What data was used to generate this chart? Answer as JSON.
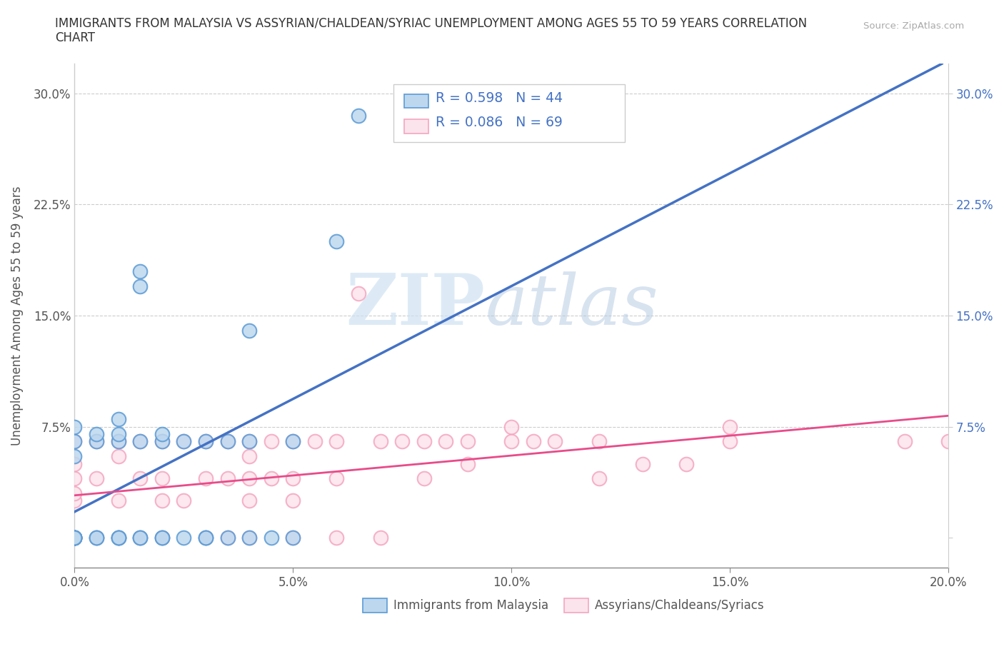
{
  "title": "IMMIGRANTS FROM MALAYSIA VS ASSYRIAN/CHALDEAN/SYRIAC UNEMPLOYMENT AMONG AGES 55 TO 59 YEARS CORRELATION\nCHART",
  "source_text": "Source: ZipAtlas.com",
  "ylabel": "Unemployment Among Ages 55 to 59 years",
  "xlim": [
    0.0,
    0.2
  ],
  "ylim": [
    -0.02,
    0.32
  ],
  "ylim_plot": [
    0.0,
    0.32
  ],
  "x_ticks": [
    0.0,
    0.05,
    0.1,
    0.15,
    0.2
  ],
  "x_tick_labels": [
    "0.0%",
    "5.0%",
    "10.0%",
    "15.0%",
    "20.0%"
  ],
  "y_ticks": [
    0.0,
    0.075,
    0.15,
    0.225,
    0.3
  ],
  "y_tick_labels": [
    "",
    "7.5%",
    "15.0%",
    "22.5%",
    "30.0%"
  ],
  "series1_R": 0.598,
  "series1_N": 44,
  "series2_R": 0.086,
  "series2_N": 69,
  "series1_color_edge": "#5b9bd5",
  "series1_color_fill": "#bdd7ee",
  "series2_color_edge": "#f4a6c0",
  "series2_color_fill": "#fce4ec",
  "line1_color": "#4472c4",
  "line2_color": "#e84b8a",
  "legend1_label": "Immigrants from Malaysia",
  "legend2_label": "Assyrians/Chaldeans/Syriacs",
  "watermark_zip": "ZIP",
  "watermark_atlas": "atlas",
  "series1_x": [
    0.0,
    0.0,
    0.0,
    0.0,
    0.0,
    0.0,
    0.0,
    0.0,
    0.0,
    0.0,
    0.005,
    0.005,
    0.005,
    0.005,
    0.01,
    0.01,
    0.01,
    0.01,
    0.01,
    0.01,
    0.015,
    0.015,
    0.015,
    0.015,
    0.015,
    0.02,
    0.02,
    0.02,
    0.02,
    0.025,
    0.025,
    0.03,
    0.03,
    0.03,
    0.035,
    0.035,
    0.04,
    0.04,
    0.04,
    0.045,
    0.05,
    0.05,
    0.06,
    0.065
  ],
  "series1_y": [
    0.0,
    0.0,
    0.0,
    0.0,
    0.0,
    0.0,
    0.0,
    0.055,
    0.065,
    0.075,
    0.0,
    0.0,
    0.065,
    0.07,
    0.0,
    0.0,
    0.0,
    0.065,
    0.07,
    0.08,
    0.0,
    0.0,
    0.065,
    0.17,
    0.18,
    0.0,
    0.0,
    0.065,
    0.07,
    0.0,
    0.065,
    0.0,
    0.0,
    0.065,
    0.0,
    0.065,
    0.0,
    0.065,
    0.14,
    0.0,
    0.0,
    0.065,
    0.2,
    0.285
  ],
  "series2_x": [
    0.0,
    0.0,
    0.0,
    0.0,
    0.0,
    0.0,
    0.0,
    0.0,
    0.0,
    0.0,
    0.0,
    0.005,
    0.005,
    0.005,
    0.01,
    0.01,
    0.01,
    0.01,
    0.015,
    0.015,
    0.015,
    0.02,
    0.02,
    0.02,
    0.02,
    0.025,
    0.025,
    0.03,
    0.03,
    0.03,
    0.035,
    0.035,
    0.035,
    0.04,
    0.04,
    0.04,
    0.04,
    0.04,
    0.045,
    0.045,
    0.05,
    0.05,
    0.05,
    0.05,
    0.055,
    0.06,
    0.06,
    0.06,
    0.065,
    0.07,
    0.07,
    0.075,
    0.08,
    0.08,
    0.085,
    0.09,
    0.09,
    0.1,
    0.1,
    0.105,
    0.11,
    0.12,
    0.12,
    0.13,
    0.14,
    0.15,
    0.15,
    0.19,
    0.2
  ],
  "series2_y": [
    0.0,
    0.0,
    0.0,
    0.0,
    0.0,
    0.0,
    0.025,
    0.03,
    0.04,
    0.05,
    0.065,
    0.0,
    0.04,
    0.065,
    0.0,
    0.025,
    0.055,
    0.065,
    0.0,
    0.04,
    0.065,
    0.0,
    0.025,
    0.04,
    0.065,
    0.025,
    0.065,
    0.0,
    0.04,
    0.065,
    0.0,
    0.04,
    0.065,
    0.0,
    0.025,
    0.04,
    0.055,
    0.065,
    0.04,
    0.065,
    0.0,
    0.025,
    0.04,
    0.065,
    0.065,
    0.0,
    0.04,
    0.065,
    0.165,
    0.0,
    0.065,
    0.065,
    0.04,
    0.065,
    0.065,
    0.05,
    0.065,
    0.065,
    0.075,
    0.065,
    0.065,
    0.04,
    0.065,
    0.05,
    0.05,
    0.065,
    0.075,
    0.065,
    0.065
  ]
}
